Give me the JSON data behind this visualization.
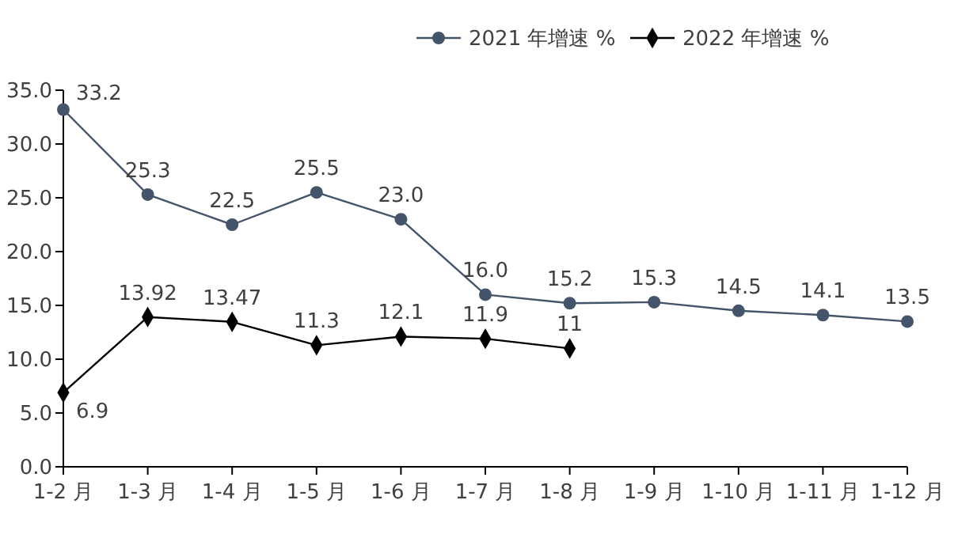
{
  "chart_data": {
    "type": "line",
    "categories": [
      "1-2 月",
      "1-3 月",
      "1-4 月",
      "1-5 月",
      "1-6 月",
      "1-7 月",
      "1-8 月",
      "1-9 月",
      "1-10 月",
      "1-11 月",
      "1-12 月"
    ],
    "series": [
      {
        "name": "2021 年增速 %",
        "color": "#44546a",
        "marker": "circle",
        "values": [
          33.2,
          25.3,
          22.5,
          25.5,
          23.0,
          16.0,
          15.2,
          15.3,
          14.5,
          14.1,
          13.5
        ],
        "value_labels": [
          "33.2",
          "25.3",
          "22.5",
          "25.5",
          "23.0",
          "16.0",
          "15.2",
          "15.3",
          "14.5",
          "14.1",
          "13.5"
        ]
      },
      {
        "name": "2022 年增速 %",
        "color": "#000000",
        "marker": "diamond",
        "values": [
          6.9,
          13.92,
          13.47,
          11.3,
          12.1,
          11.9,
          11,
          null,
          null,
          null,
          null
        ],
        "value_labels": [
          "6.9",
          "13.92",
          "13.47",
          "11.3",
          "12.1",
          "11.9",
          "11",
          null,
          null,
          null,
          null
        ]
      }
    ],
    "ylim": [
      0,
      35
    ],
    "yticks": [
      {
        "value": 0,
        "label": "0.0"
      },
      {
        "value": 5,
        "label": "5.0"
      },
      {
        "value": 10,
        "label": "10.0"
      },
      {
        "value": 15,
        "label": "15.0"
      },
      {
        "value": 20,
        "label": "20.0"
      },
      {
        "value": 25,
        "label": "25.0"
      },
      {
        "value": 30,
        "label": "30.0"
      },
      {
        "value": 35,
        "label": "35.0"
      }
    ],
    "grid": false,
    "legend": "top right",
    "line_style": "solid"
  }
}
